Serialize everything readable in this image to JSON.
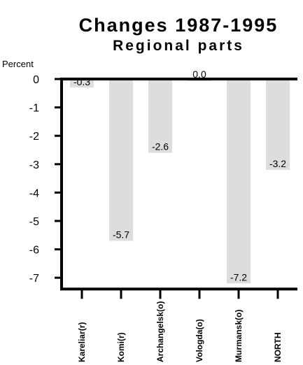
{
  "chart_data": {
    "type": "bar",
    "title": "Changes 1987-1995",
    "subtitle": "Regional parts",
    "ylabel": "Percent",
    "xlabel": "",
    "categories": [
      "Kareliar(r)",
      "Komi(r)",
      "Archangelsk(o)",
      "Vologda(o)",
      "Murmansk(o)",
      "NORTH"
    ],
    "values": [
      -0.3,
      -5.7,
      -2.6,
      0.0,
      -7.2,
      -3.2
    ],
    "data_labels": [
      "-0.3",
      "-5.7",
      "-2.6",
      "0.0",
      "-7.2",
      "-3.2"
    ],
    "ylim": [
      -7.3,
      0
    ],
    "yticks": [
      0,
      -1,
      -2,
      -3,
      -4,
      -5,
      -6,
      -7
    ],
    "ytick_labels": [
      "0",
      "-1",
      "-2",
      "-3",
      "-4",
      "-5",
      "-6",
      "-7"
    ],
    "grid": false,
    "bar_color": "#dddddd"
  }
}
